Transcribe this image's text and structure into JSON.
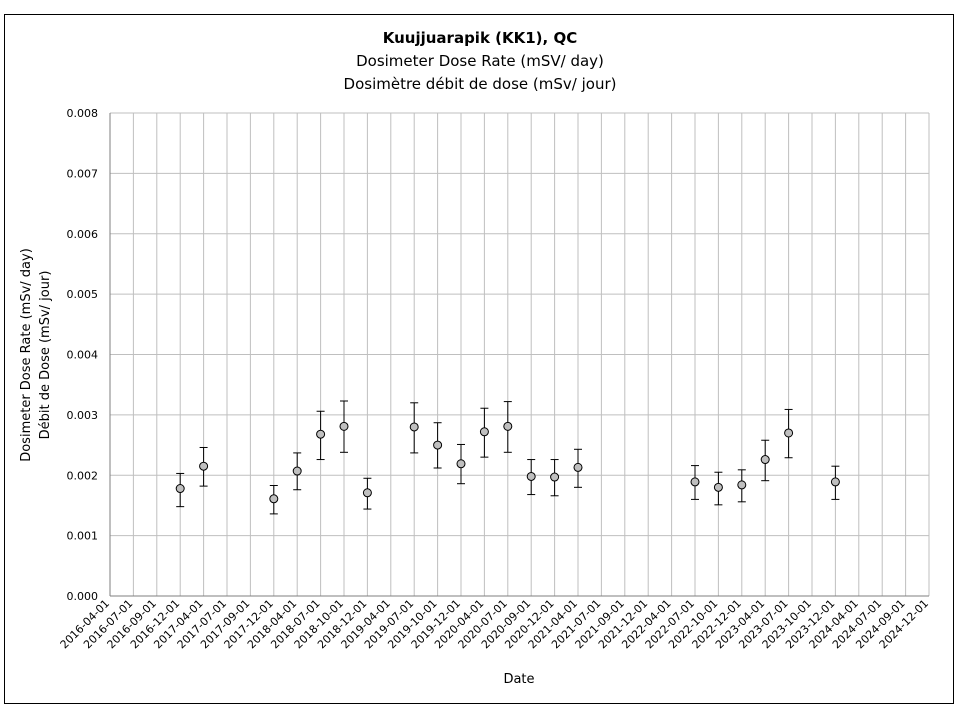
{
  "chart_data": {
    "type": "scatter",
    "title": "Kuujjuarapik (KK1), QC",
    "subtitle_en": "Dosimeter Dose Rate (mSV/ day)",
    "subtitle_fr": "Dosimètre débit de dose (mSv/ jour)",
    "xlabel": "Date",
    "ylabel_en": "Dosimeter Dose Rate (mSv/ day)",
    "ylabel_fr": "Débit de Dose (mSv/ jour)",
    "ylim": [
      0,
      0.008
    ],
    "yticks": [
      "0.000",
      "0.001",
      "0.002",
      "0.003",
      "0.004",
      "0.005",
      "0.006",
      "0.007",
      "0.008"
    ],
    "xticks": [
      "2016-04-01",
      "2016-07-01",
      "2016-09-01",
      "2016-12-01",
      "2017-04-01",
      "2017-07-01",
      "2017-09-01",
      "2017-12-01",
      "2018-04-01",
      "2018-07-01",
      "2018-10-01",
      "2018-12-01",
      "2019-04-01",
      "2019-07-01",
      "2019-10-01",
      "2019-12-01",
      "2020-04-01",
      "2020-07-01",
      "2020-09-01",
      "2020-12-01",
      "2021-04-01",
      "2021-07-01",
      "2021-09-01",
      "2021-12-01",
      "2022-04-01",
      "2022-07-01",
      "2022-10-01",
      "2022-12-01",
      "2023-04-01",
      "2023-07-01",
      "2023-10-01",
      "2023-12-01",
      "2024-04-01",
      "2024-07-01",
      "2024-09-01",
      "2024-12-01"
    ],
    "grid": true,
    "series": [
      {
        "points": [
          {
            "date": "2016-12-01",
            "y": 0.00178,
            "lo": 0.00148,
            "hi": 0.00203
          },
          {
            "date": "2017-04-01",
            "y": 0.00215,
            "lo": 0.00182,
            "hi": 0.00246
          },
          {
            "date": "2017-12-01",
            "y": 0.00161,
            "lo": 0.00136,
            "hi": 0.00183
          },
          {
            "date": "2018-04-01",
            "y": 0.00207,
            "lo": 0.00176,
            "hi": 0.00237
          },
          {
            "date": "2018-07-01",
            "y": 0.00268,
            "lo": 0.00226,
            "hi": 0.00306
          },
          {
            "date": "2018-10-01",
            "y": 0.00281,
            "lo": 0.00238,
            "hi": 0.00323
          },
          {
            "date": "2018-12-01",
            "y": 0.00171,
            "lo": 0.00144,
            "hi": 0.00195
          },
          {
            "date": "2019-07-01",
            "y": 0.0028,
            "lo": 0.00237,
            "hi": 0.0032
          },
          {
            "date": "2019-10-01",
            "y": 0.0025,
            "lo": 0.00212,
            "hi": 0.00287
          },
          {
            "date": "2019-12-01",
            "y": 0.00219,
            "lo": 0.00186,
            "hi": 0.00251
          },
          {
            "date": "2020-04-01",
            "y": 0.00272,
            "lo": 0.0023,
            "hi": 0.00311
          },
          {
            "date": "2020-07-01",
            "y": 0.00281,
            "lo": 0.00238,
            "hi": 0.00322
          },
          {
            "date": "2020-09-01",
            "y": 0.00198,
            "lo": 0.00168,
            "hi": 0.00226
          },
          {
            "date": "2020-12-01",
            "y": 0.00197,
            "lo": 0.00166,
            "hi": 0.00226
          },
          {
            "date": "2021-04-01",
            "y": 0.00213,
            "lo": 0.0018,
            "hi": 0.00243
          },
          {
            "date": "2022-07-01",
            "y": 0.00189,
            "lo": 0.0016,
            "hi": 0.00216
          },
          {
            "date": "2022-10-01",
            "y": 0.0018,
            "lo": 0.00151,
            "hi": 0.00205
          },
          {
            "date": "2022-12-01",
            "y": 0.00184,
            "lo": 0.00156,
            "hi": 0.00209
          },
          {
            "date": "2023-04-01",
            "y": 0.00226,
            "lo": 0.00191,
            "hi": 0.00258
          },
          {
            "date": "2023-07-01",
            "y": 0.0027,
            "lo": 0.00229,
            "hi": 0.00309
          },
          {
            "date": "2023-12-01",
            "y": 0.00189,
            "lo": 0.0016,
            "hi": 0.00215
          }
        ]
      }
    ],
    "marker_color": "#bfbfbf",
    "marker_edge": "#000000",
    "grid_color": "#bfbfbf"
  }
}
